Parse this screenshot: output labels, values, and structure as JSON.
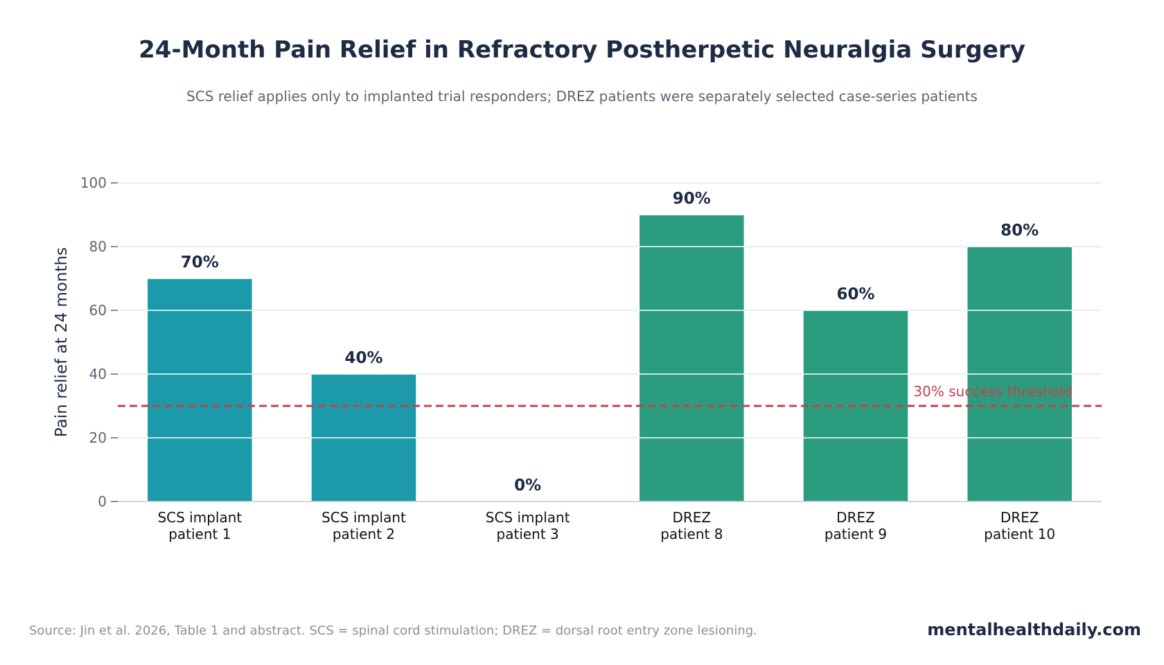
{
  "title": "24-Month Pain Relief in Refractory Postherpetic Neuralgia Surgery",
  "subtitle": "SCS relief applies only to implanted trial responders; DREZ patients were separately selected case-series patients",
  "source": "Source: Jin et al. 2026, Table 1 and abstract. SCS = spinal cord stimulation; DREZ = dorsal root entry zone lesioning.",
  "brand": "mentalhealthdaily.com",
  "chart_data": {
    "type": "bar",
    "ylabel": "Pain relief at 24 months",
    "xlabel": "",
    "ylim": [
      0,
      100
    ],
    "yticks": [
      0,
      20,
      40,
      60,
      80,
      100
    ],
    "grid": true,
    "categories": [
      [
        "SCS implant",
        "patient 1"
      ],
      [
        "SCS implant",
        "patient 2"
      ],
      [
        "SCS implant",
        "patient 3"
      ],
      [
        "DREZ",
        "patient 8"
      ],
      [
        "DREZ",
        "patient 9"
      ],
      [
        "DREZ",
        "patient 10"
      ]
    ],
    "values": [
      70,
      40,
      0,
      90,
      60,
      80
    ],
    "value_labels": [
      "70%",
      "40%",
      "0%",
      "90%",
      "60%",
      "80%"
    ],
    "groups": [
      "SCS",
      "SCS",
      "SCS",
      "DREZ",
      "DREZ",
      "DREZ"
    ],
    "colors": {
      "SCS": "#1c9aa9",
      "DREZ": "#2b9d7e",
      "threshold": "#c3414b",
      "text_dark": "#1e2b44",
      "grid": "#e3e5e8"
    },
    "threshold": {
      "value": 30,
      "label": "30% success threshold"
    }
  }
}
